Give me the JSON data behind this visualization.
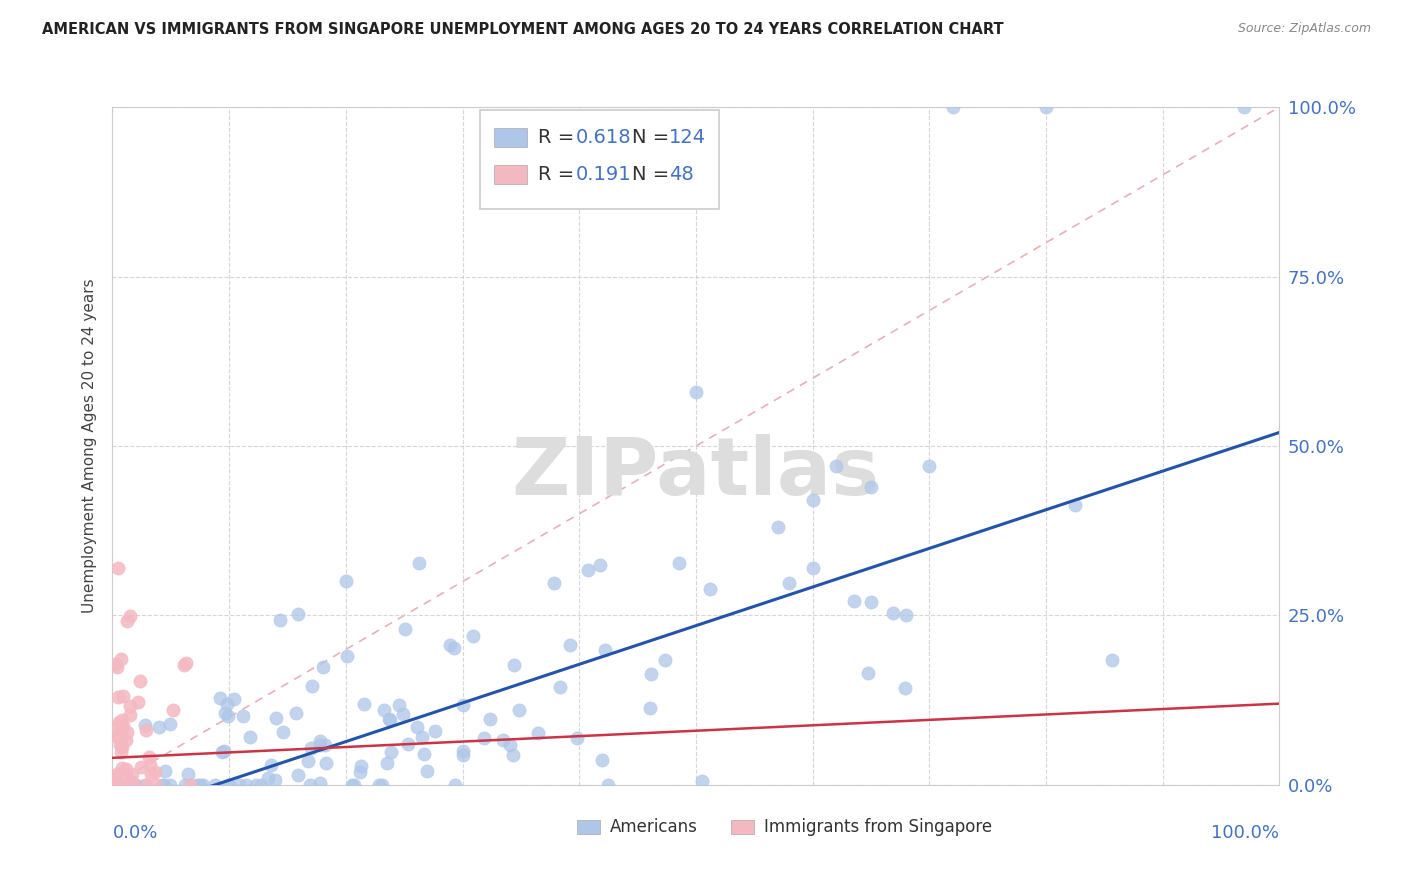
{
  "title": "AMERICAN VS IMMIGRANTS FROM SINGAPORE UNEMPLOYMENT AMONG AGES 20 TO 24 YEARS CORRELATION CHART",
  "source": "Source: ZipAtlas.com",
  "ylabel": "Unemployment Among Ages 20 to 24 years",
  "ytick_values": [
    0.0,
    0.25,
    0.5,
    0.75,
    1.0
  ],
  "ytick_labels": [
    "0.0%",
    "25.0%",
    "50.0%",
    "75.0%",
    "100.0%"
  ],
  "watermark": "ZIPatlas",
  "blue_label_color": "#4472c4",
  "scatter_blue": "#aec6e8",
  "scatter_pink": "#f4b8c1",
  "regression_blue": "#2255aa",
  "regression_pink": "#cc3344",
  "diagonal_color": "#e8b0b8",
  "R_blue": 0.618,
  "N_blue": 124,
  "R_pink": 0.191,
  "N_pink": 48,
  "seed": 42,
  "xlim": [
    0.0,
    1.0
  ],
  "ylim": [
    0.0,
    1.0
  ],
  "blue_intercept": -0.05,
  "blue_slope": 0.57,
  "pink_intercept": 0.04,
  "pink_slope": 0.08
}
